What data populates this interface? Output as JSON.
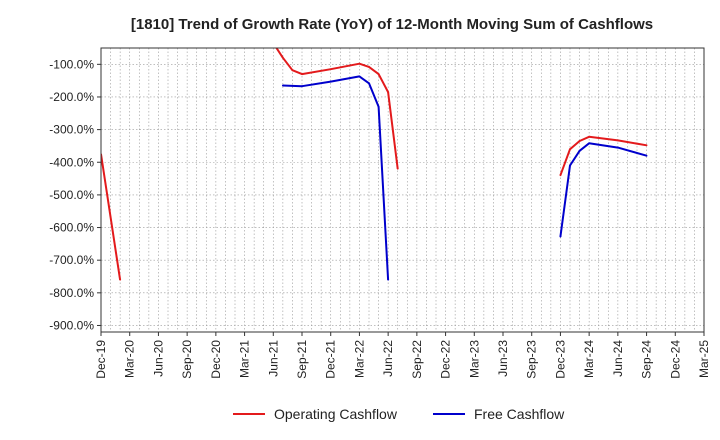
{
  "chart_data": {
    "type": "line",
    "title": "[1810]  Trend of Growth Rate (YoY) of 12-Month Moving Sum of Cashflows",
    "xlabel": "",
    "ylabel": "",
    "ylim": [
      -920,
      -50
    ],
    "y_ticks": [
      -100,
      -200,
      -300,
      -400,
      -500,
      -600,
      -700,
      -800,
      -900
    ],
    "y_tick_labels": [
      "-100.0%",
      "-200.0%",
      "-300.0%",
      "-400.0%",
      "-500.0%",
      "-600.0%",
      "-700.0%",
      "-800.0%",
      "-900.0%"
    ],
    "x_tick_labels": [
      "Dec-19",
      "Mar-20",
      "Jun-20",
      "Sep-20",
      "Dec-20",
      "Mar-21",
      "Jun-21",
      "Sep-21",
      "Dec-21",
      "Mar-22",
      "Jun-22",
      "Sep-22",
      "Dec-22",
      "Mar-23",
      "Jun-23",
      "Sep-23",
      "Dec-23",
      "Mar-24",
      "Jun-24",
      "Sep-24",
      "Dec-24",
      "Mar-25"
    ],
    "grid": true,
    "legend_position": "bottom",
    "series": [
      {
        "name": "Operating Cashflow",
        "color": "#e31a1c",
        "segments": [
          [
            {
              "x": "Dec-19",
              "y": -375
            },
            {
              "x": "Feb-20",
              "y": -760
            }
          ],
          [
            {
              "x": "Jun-21",
              "y": -35
            },
            {
              "x": "Jul-21",
              "y": -80
            },
            {
              "x": "Aug-21",
              "y": -118
            },
            {
              "x": "Sep-21",
              "y": -130
            },
            {
              "x": "Dec-21",
              "y": -115
            },
            {
              "x": "Mar-22",
              "y": -98
            },
            {
              "x": "Apr-22",
              "y": -108
            },
            {
              "x": "May-22",
              "y": -130
            },
            {
              "x": "Jun-22",
              "y": -185
            },
            {
              "x": "Jul-22",
              "y": -420
            }
          ],
          [
            {
              "x": "Dec-23",
              "y": -440
            },
            {
              "x": "Jan-24",
              "y": -360
            },
            {
              "x": "Feb-24",
              "y": -335
            },
            {
              "x": "Mar-24",
              "y": -322
            },
            {
              "x": "Jun-24",
              "y": -333
            },
            {
              "x": "Sep-24",
              "y": -348
            }
          ]
        ]
      },
      {
        "name": "Free Cashflow",
        "color": "#0000cc",
        "segments": [
          [
            {
              "x": "Jul-21",
              "y": -165
            },
            {
              "x": "Sep-21",
              "y": -167
            },
            {
              "x": "Dec-21",
              "y": -153
            },
            {
              "x": "Mar-22",
              "y": -137
            },
            {
              "x": "Apr-22",
              "y": -158
            },
            {
              "x": "May-22",
              "y": -230
            },
            {
              "x": "Jun-22",
              "y": -760
            }
          ],
          [
            {
              "x": "Dec-23",
              "y": -628
            },
            {
              "x": "Jan-24",
              "y": -410
            },
            {
              "x": "Feb-24",
              "y": -365
            },
            {
              "x": "Mar-24",
              "y": -342
            },
            {
              "x": "Jun-24",
              "y": -355
            },
            {
              "x": "Sep-24",
              "y": -380
            }
          ]
        ]
      }
    ]
  }
}
